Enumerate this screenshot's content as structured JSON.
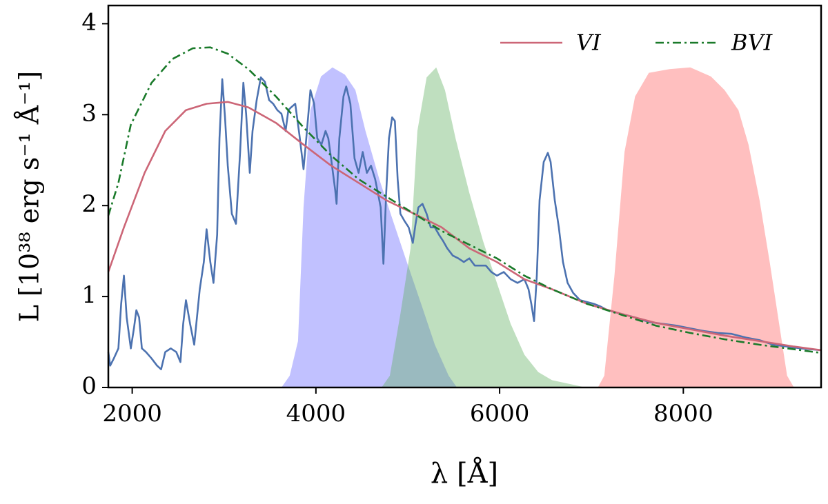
{
  "chart_data": {
    "type": "line",
    "xlabel": "λ [Å]",
    "ylabel": "L [10³⁸ erg s⁻¹ Å⁻¹]",
    "xlim": [
      1740,
      9500
    ],
    "ylim": [
      0,
      4.2
    ],
    "xticks": [
      2000,
      4000,
      6000,
      8000
    ],
    "yticks": [
      0,
      1,
      2,
      3,
      4
    ],
    "legend": "upper right",
    "areas": [
      {
        "color": "#6464ff",
        "x": [
          3625,
          3715,
          3805,
          3865,
          3940,
          4055,
          4180,
          4315,
          4430,
          4540,
          4690,
          4840,
          4990,
          5145,
          5295,
          5445,
          5535
        ],
        "values": [
          0,
          0.13,
          0.51,
          1.98,
          3.05,
          3.42,
          3.52,
          3.44,
          3.27,
          2.82,
          2.29,
          1.83,
          1.38,
          0.92,
          0.47,
          0.13,
          0
        ]
      },
      {
        "color": "#5fb05f",
        "x": [
          4715,
          4805,
          4920,
          5030,
          5105,
          5205,
          5310,
          5405,
          5520,
          5670,
          5820,
          5970,
          6120,
          6270,
          6420,
          6570,
          6800,
          6935
        ],
        "values": [
          0,
          0.13,
          0.81,
          1.53,
          2.82,
          3.41,
          3.52,
          3.27,
          2.74,
          2.14,
          1.61,
          1.15,
          0.7,
          0.36,
          0.17,
          0.08,
          0.03,
          0
        ]
      },
      {
        "color": "#ff6060",
        "x": [
          7070,
          7140,
          7250,
          7360,
          7475,
          7625,
          7850,
          8075,
          8300,
          8450,
          8600,
          8710,
          8830,
          8940,
          9055,
          9130,
          9205
        ],
        "values": [
          0,
          0.13,
          1.23,
          2.59,
          3.2,
          3.46,
          3.5,
          3.52,
          3.42,
          3.27,
          3.05,
          2.67,
          2.06,
          1.38,
          0.62,
          0.13,
          0
        ]
      }
    ],
    "series": [
      {
        "color": "#4c72b0",
        "linestyle": "-",
        "x": [
          1740,
          1760,
          1800,
          1850,
          1880,
          1910,
          1940,
          1985,
          2020,
          2045,
          2075,
          2105,
          2150,
          2210,
          2270,
          2315,
          2360,
          2420,
          2480,
          2525,
          2555,
          2585,
          2630,
          2675,
          2735,
          2780,
          2810,
          2850,
          2885,
          2925,
          2950,
          2980,
          3010,
          3040,
          3085,
          3130,
          3175,
          3210,
          3240,
          3280,
          3310,
          3355,
          3400,
          3445,
          3490,
          3535,
          3580,
          3625,
          3670,
          3700,
          3730,
          3775,
          3820,
          3865,
          3895,
          3940,
          3980,
          4015,
          4060,
          4105,
          4135,
          4165,
          4210,
          4225,
          4255,
          4300,
          4330,
          4375,
          4420,
          4465,
          4510,
          4555,
          4600,
          4645,
          4675,
          4705,
          4735,
          4765,
          4795,
          4830,
          4860,
          4890,
          4920,
          4965,
          5010,
          5055,
          5085,
          5115,
          5160,
          5205,
          5250,
          5295,
          5340,
          5385,
          5430,
          5490,
          5550,
          5610,
          5670,
          5730,
          5790,
          5850,
          5910,
          5970,
          6045,
          6120,
          6195,
          6270,
          6315,
          6345,
          6375,
          6405,
          6435,
          6480,
          6525,
          6555,
          6600,
          6645,
          6690,
          6740,
          6800,
          6875,
          6950,
          7025,
          7100,
          7175,
          7325,
          7475,
          7625,
          7775,
          7925,
          8075,
          8225,
          8375,
          8525,
          8680,
          8830,
          8980,
          9130,
          9280,
          9500
        ],
        "values": [
          0.39,
          0.24,
          0.32,
          0.43,
          0.92,
          1.23,
          0.77,
          0.43,
          0.66,
          0.85,
          0.77,
          0.43,
          0.39,
          0.32,
          0.24,
          0.2,
          0.39,
          0.43,
          0.39,
          0.28,
          0.7,
          0.96,
          0.7,
          0.47,
          1.08,
          1.38,
          1.74,
          1.38,
          1.15,
          1.68,
          2.74,
          3.39,
          2.97,
          2.44,
          1.91,
          1.8,
          2.59,
          3.35,
          3.01,
          2.36,
          2.82,
          3.16,
          3.41,
          3.36,
          3.16,
          3.12,
          3.05,
          3.01,
          2.82,
          3.05,
          3.08,
          3.12,
          2.78,
          2.4,
          2.74,
          3.27,
          3.12,
          2.74,
          2.67,
          2.82,
          2.74,
          2.52,
          2.17,
          2.02,
          2.74,
          3.2,
          3.31,
          3.12,
          2.52,
          2.36,
          2.59,
          2.36,
          2.44,
          2.29,
          2.14,
          1.98,
          1.36,
          2.14,
          2.74,
          2.97,
          2.93,
          2.29,
          1.91,
          1.83,
          1.76,
          1.59,
          1.8,
          1.98,
          2.02,
          1.91,
          1.76,
          1.76,
          1.68,
          1.61,
          1.53,
          1.45,
          1.42,
          1.38,
          1.42,
          1.34,
          1.34,
          1.34,
          1.27,
          1.23,
          1.27,
          1.19,
          1.15,
          1.19,
          1.08,
          0.92,
          0.73,
          1.23,
          2.06,
          2.48,
          2.58,
          2.48,
          2.06,
          1.76,
          1.38,
          1.15,
          1.04,
          0.96,
          0.94,
          0.92,
          0.89,
          0.85,
          0.81,
          0.77,
          0.72,
          0.7,
          0.68,
          0.65,
          0.62,
          0.6,
          0.59,
          0.55,
          0.52,
          0.47,
          0.45,
          0.43,
          0.41
        ]
      },
      {
        "name": "VI",
        "color": "#cc6677",
        "linestyle": "-",
        "x": [
          1740,
          1910,
          2135,
          2360,
          2585,
          2810,
          3040,
          3265,
          3565,
          3865,
          4165,
          4465,
          4765,
          5070,
          5370,
          5670,
          5970,
          6270,
          6570,
          6950,
          7325,
          7700,
          8075,
          8450,
          8830,
          9205,
          9500
        ],
        "values": [
          1.27,
          1.76,
          2.36,
          2.82,
          3.05,
          3.12,
          3.14,
          3.08,
          2.91,
          2.67,
          2.44,
          2.25,
          2.06,
          1.91,
          1.76,
          1.53,
          1.38,
          1.19,
          1.08,
          0.92,
          0.81,
          0.71,
          0.64,
          0.57,
          0.51,
          0.45,
          0.41
        ]
      },
      {
        "name": "BVI",
        "color": "#1a7a2a",
        "linestyle": "-.",
        "x": [
          1740,
          1850,
          1985,
          2210,
          2435,
          2660,
          2850,
          3040,
          3265,
          3565,
          3865,
          4165,
          4465,
          4765,
          5070,
          5370,
          5670,
          5970,
          6270,
          6570,
          6950,
          7325,
          7700,
          8075,
          8450,
          8830,
          9205,
          9500
        ],
        "values": [
          1.89,
          2.25,
          2.89,
          3.35,
          3.61,
          3.73,
          3.74,
          3.67,
          3.5,
          3.2,
          2.86,
          2.55,
          2.29,
          2.1,
          1.91,
          1.72,
          1.57,
          1.42,
          1.23,
          1.08,
          0.92,
          0.8,
          0.68,
          0.6,
          0.53,
          0.47,
          0.42,
          0.38
        ]
      }
    ]
  }
}
